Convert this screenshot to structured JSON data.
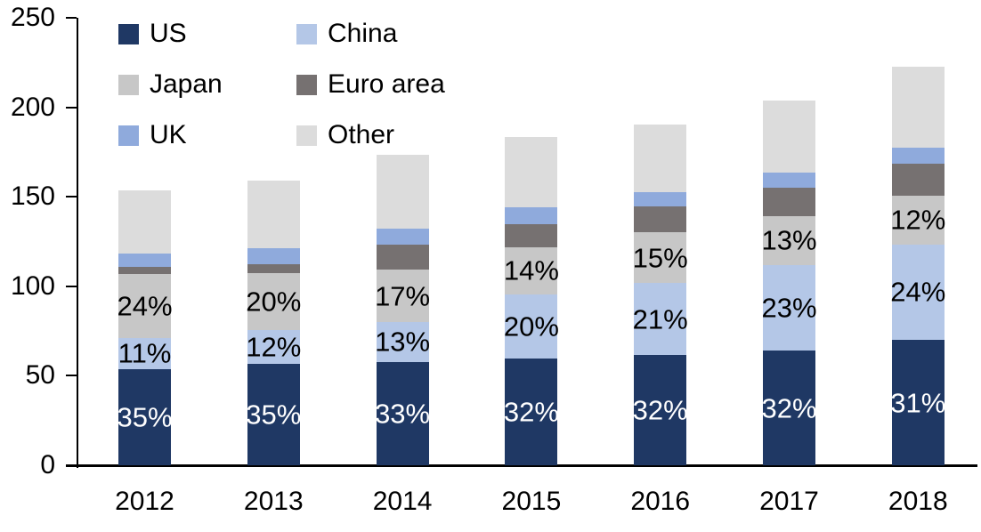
{
  "chart_data": {
    "type": "bar",
    "stacked": true,
    "title": "",
    "xlabel": "",
    "ylabel": "",
    "categories": [
      "2012",
      "2013",
      "2014",
      "2015",
      "2016",
      "2017",
      "2018"
    ],
    "series": [
      {
        "name": "US",
        "color": "#1f3864",
        "values": [
          53.9,
          56.7,
          57.7,
          59.6,
          61.6,
          64.1,
          70.0
        ],
        "labels": [
          "35%",
          "35%",
          "33%",
          "32%",
          "32%",
          "32%",
          "31%"
        ],
        "label_color": "#ffffff"
      },
      {
        "name": "China",
        "color": "#b4c7e7",
        "values": [
          17.4,
          18.8,
          22.3,
          35.8,
          40.3,
          47.7,
          53.5
        ],
        "labels": [
          "11%",
          "12%",
          "13%",
          "20%",
          "21%",
          "23%",
          "24%"
        ],
        "label_color": "#000000"
      },
      {
        "name": "Japan",
        "color": "#c7c7c7",
        "values": [
          35.8,
          31.9,
          29.3,
          26.4,
          28.3,
          27.4,
          27.0
        ],
        "labels": [
          "24%",
          "20%",
          "17%",
          "14%",
          "15%",
          "13%",
          "12%"
        ],
        "label_color": "#000000"
      },
      {
        "name": "Euro area",
        "color": "#767171",
        "values": [
          3.9,
          4.9,
          14.0,
          12.9,
          14.4,
          15.9,
          18.0
        ],
        "labels": null,
        "label_color": null
      },
      {
        "name": "UK",
        "color": "#8faadc",
        "values": [
          7.5,
          9.0,
          8.9,
          9.4,
          8.0,
          8.4,
          9.0
        ],
        "labels": null,
        "label_color": null
      },
      {
        "name": "Other",
        "color": "#dcdcdc",
        "values": [
          35.1,
          37.7,
          41.3,
          39.3,
          37.8,
          40.3,
          45.0
        ],
        "labels": null,
        "label_color": null
      }
    ],
    "totals": [
      153.6,
      159.0,
      173.5,
      183.4,
      190.4,
      203.8,
      222.5
    ],
    "ylim": [
      0,
      250
    ],
    "yticks": [
      "0",
      "50",
      "100",
      "150",
      "200",
      "250"
    ],
    "grid": false,
    "legend_position": "top-left",
    "legend_order": [
      "US",
      "China",
      "Japan",
      "Euro area",
      "UK",
      "Other"
    ],
    "axis_color": "#000000",
    "background_color": "#ffffff"
  }
}
